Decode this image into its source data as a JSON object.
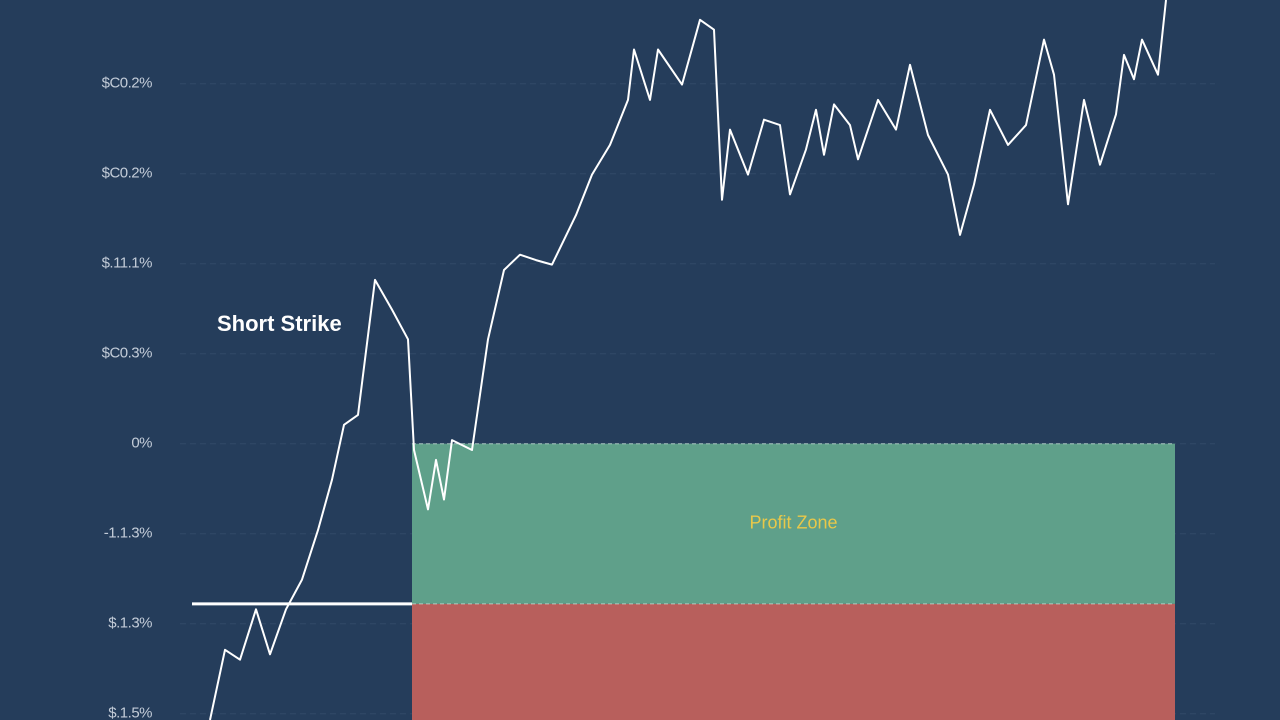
{
  "chart_data": {
    "type": "line",
    "background": "#253d5b",
    "xlim": [
      0,
      983
    ],
    "ylim": [
      -3.07,
      4.93
    ],
    "yticks": [
      {
        "value": 4,
        "label": "$C0.2%"
      },
      {
        "value": 3,
        "label": "$C0.2%"
      },
      {
        "value": 2,
        "label": "$.11.1%"
      },
      {
        "value": 1,
        "label": "$C0.3%"
      },
      {
        "value": 0,
        "label": "0%"
      },
      {
        "value": -1,
        "label": "-1.1.3%"
      },
      {
        "value": -2,
        "label": "$.1.3%"
      },
      {
        "value": -3,
        "label": "$.1.5%"
      }
    ],
    "grid": true,
    "series": [
      {
        "color": "#ffffff",
        "x": [
          18,
          33,
          48,
          64,
          78,
          94,
          110,
          126,
          140,
          152,
          166,
          183,
          200,
          216,
          222,
          236,
          244,
          252,
          260,
          280,
          296,
          312,
          328,
          344,
          360,
          384,
          400,
          418,
          436,
          442,
          458,
          466,
          490,
          508,
          522,
          530,
          538,
          556,
          572,
          588,
          598,
          614,
          624,
          632,
          642,
          658,
          666,
          686,
          704,
          718,
          736,
          756,
          768,
          782,
          798,
          816,
          834,
          852,
          862,
          876,
          892,
          908,
          924,
          932,
          942,
          950,
          966,
          974
        ],
        "values": [
          -3.07,
          -2.29,
          -2.4,
          -1.84,
          -2.34,
          -1.84,
          -1.51,
          -0.96,
          -0.4,
          0.21,
          0.32,
          1.82,
          1.49,
          1.16,
          -0.07,
          -0.73,
          -0.18,
          -0.62,
          0.04,
          -0.07,
          1.16,
          1.93,
          2.1,
          2.04,
          1.99,
          2.54,
          2.99,
          3.32,
          3.82,
          4.38,
          3.82,
          4.38,
          3.99,
          4.71,
          4.6,
          2.71,
          3.49,
          2.99,
          3.6,
          3.54,
          2.77,
          3.27,
          3.71,
          3.21,
          3.77,
          3.54,
          3.16,
          3.82,
          3.49,
          4.21,
          3.43,
          2.99,
          2.32,
          2.88,
          3.71,
          3.32,
          3.54,
          4.49,
          4.1,
          2.66,
          3.82,
          3.1,
          3.66,
          4.32,
          4.05,
          4.49,
          4.1,
          4.93
        ]
      }
    ],
    "zones": [
      {
        "label": "Profit Zone",
        "from": 0,
        "to": -1.78,
        "x_start": 220,
        "x_end": 983,
        "color": "#5fa08a",
        "label_color": "#e8c84a"
      },
      {
        "from": -1.78,
        "to": -3.07,
        "x_start": 220,
        "x_end": 983,
        "color": "#b85f5c"
      }
    ],
    "short_strike": {
      "label": "Short Strike",
      "value": -1.78,
      "x_start": 0,
      "x_end": 220
    }
  }
}
